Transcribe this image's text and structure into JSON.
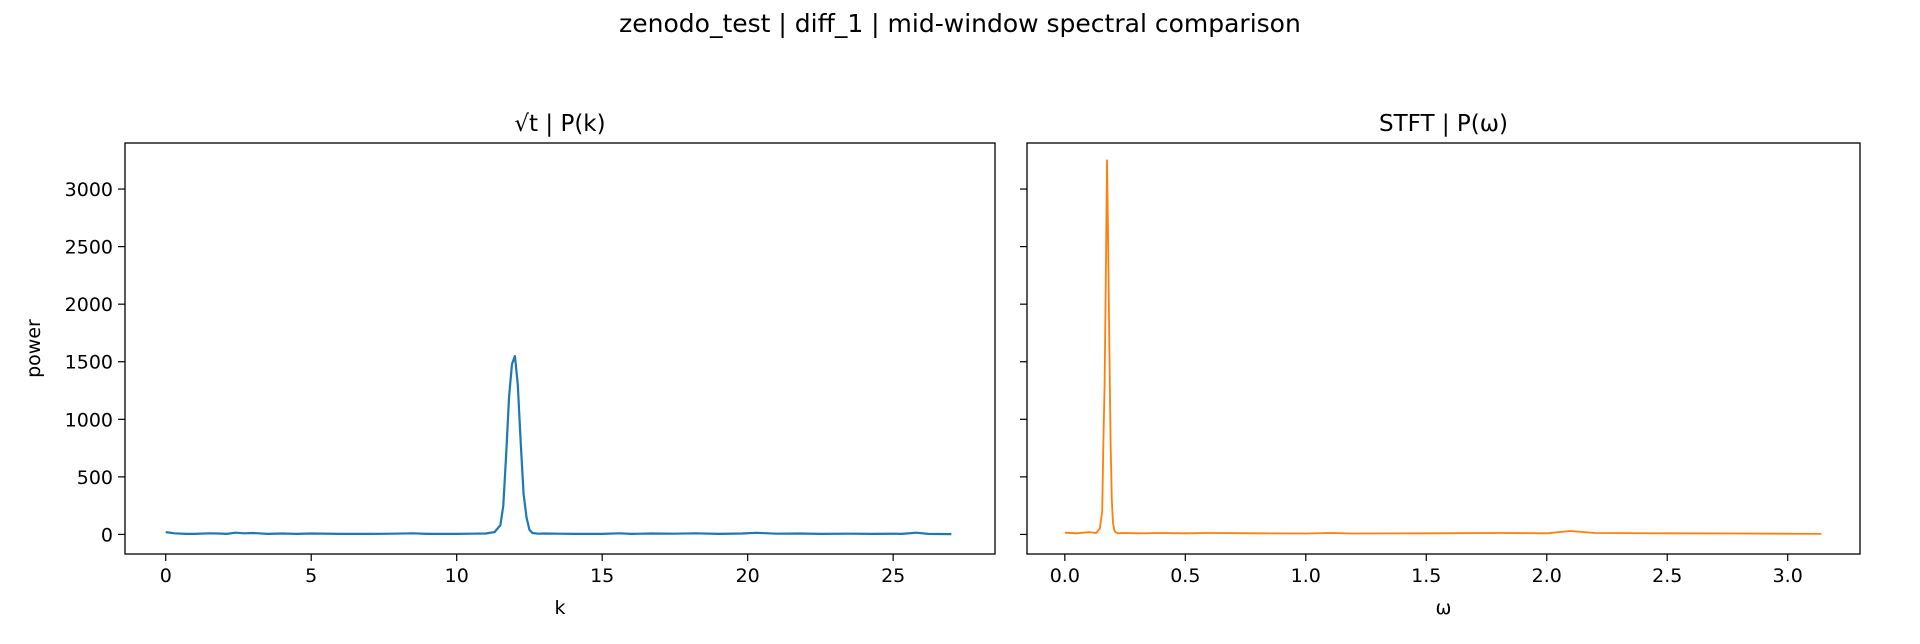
{
  "chart_data": [
    {
      "type": "line",
      "title": "√t | P(k)",
      "xlabel": "k",
      "ylabel": "power",
      "xlim": [
        -1.4,
        28.5
      ],
      "ylim": [
        -170,
        3400
      ],
      "xticks": [
        0,
        5,
        10,
        15,
        20,
        25
      ],
      "yticks": [
        0,
        500,
        1000,
        1500,
        2000,
        2500,
        3000
      ],
      "grid": false,
      "color": "#1f77b4",
      "series": [
        {
          "x": [
            0.0,
            0.3,
            0.7,
            1.0,
            1.5,
            1.8,
            2.1,
            2.4,
            2.7,
            3.0,
            3.5,
            4.0,
            4.5,
            5.0,
            6.0,
            7.0,
            7.8,
            8.5,
            9.0,
            9.5,
            10.0,
            10.5,
            11.0,
            11.3,
            11.5,
            11.6,
            11.7,
            11.8,
            11.9,
            12.0,
            12.1,
            12.2,
            12.3,
            12.4,
            12.5,
            12.6,
            12.8,
            13.0,
            13.5,
            14.0,
            15.0,
            15.6,
            16.0,
            16.7,
            17.5,
            18.2,
            19.0,
            19.8,
            20.3,
            21.0,
            21.8,
            22.5,
            23.5,
            24.3,
            25.0,
            25.3,
            25.8,
            26.2,
            27.0
          ],
          "y": [
            20,
            10,
            5,
            5,
            10,
            8,
            5,
            15,
            10,
            12,
            5,
            8,
            5,
            8,
            5,
            5,
            6,
            10,
            5,
            5,
            5,
            6,
            8,
            20,
            80,
            250,
            700,
            1200,
            1480,
            1550,
            1300,
            800,
            350,
            150,
            40,
            12,
            6,
            8,
            6,
            5,
            5,
            10,
            5,
            8,
            6,
            10,
            5,
            8,
            14,
            6,
            8,
            5,
            6,
            5,
            6,
            5,
            15,
            5,
            3
          ]
        }
      ]
    },
    {
      "type": "line",
      "title": "STFT | P(ω)",
      "xlabel": "ω",
      "ylabel": "",
      "xlim": [
        -0.157,
        3.3
      ],
      "ylim": [
        -170,
        3400
      ],
      "xticks": [
        0.0,
        0.5,
        1.0,
        1.5,
        2.0,
        2.5,
        3.0
      ],
      "yticks": [
        0,
        500,
        1000,
        1500,
        2000,
        2500,
        3000
      ],
      "grid": false,
      "color": "#ff7f0e",
      "series": [
        {
          "x": [
            0.0,
            0.05,
            0.1,
            0.13,
            0.145,
            0.155,
            0.16,
            0.165,
            0.17,
            0.175,
            0.18,
            0.185,
            0.19,
            0.195,
            0.2,
            0.205,
            0.21,
            0.22,
            0.24,
            0.3,
            0.4,
            0.5,
            0.6,
            0.8,
            1.0,
            1.1,
            1.2,
            1.5,
            1.8,
            2.0,
            2.1,
            2.2,
            2.5,
            2.8,
            3.14
          ],
          "y": [
            15,
            10,
            20,
            12,
            50,
            200,
            800,
            1300,
            2200,
            3250,
            2500,
            1600,
            800,
            300,
            100,
            40,
            20,
            10,
            12,
            10,
            12,
            10,
            12,
            10,
            8,
            12,
            8,
            10,
            12,
            10,
            30,
            12,
            10,
            8,
            5
          ]
        }
      ]
    }
  ],
  "suptitle": "zenodo_test | diff_1 | mid-window spectral comparison"
}
